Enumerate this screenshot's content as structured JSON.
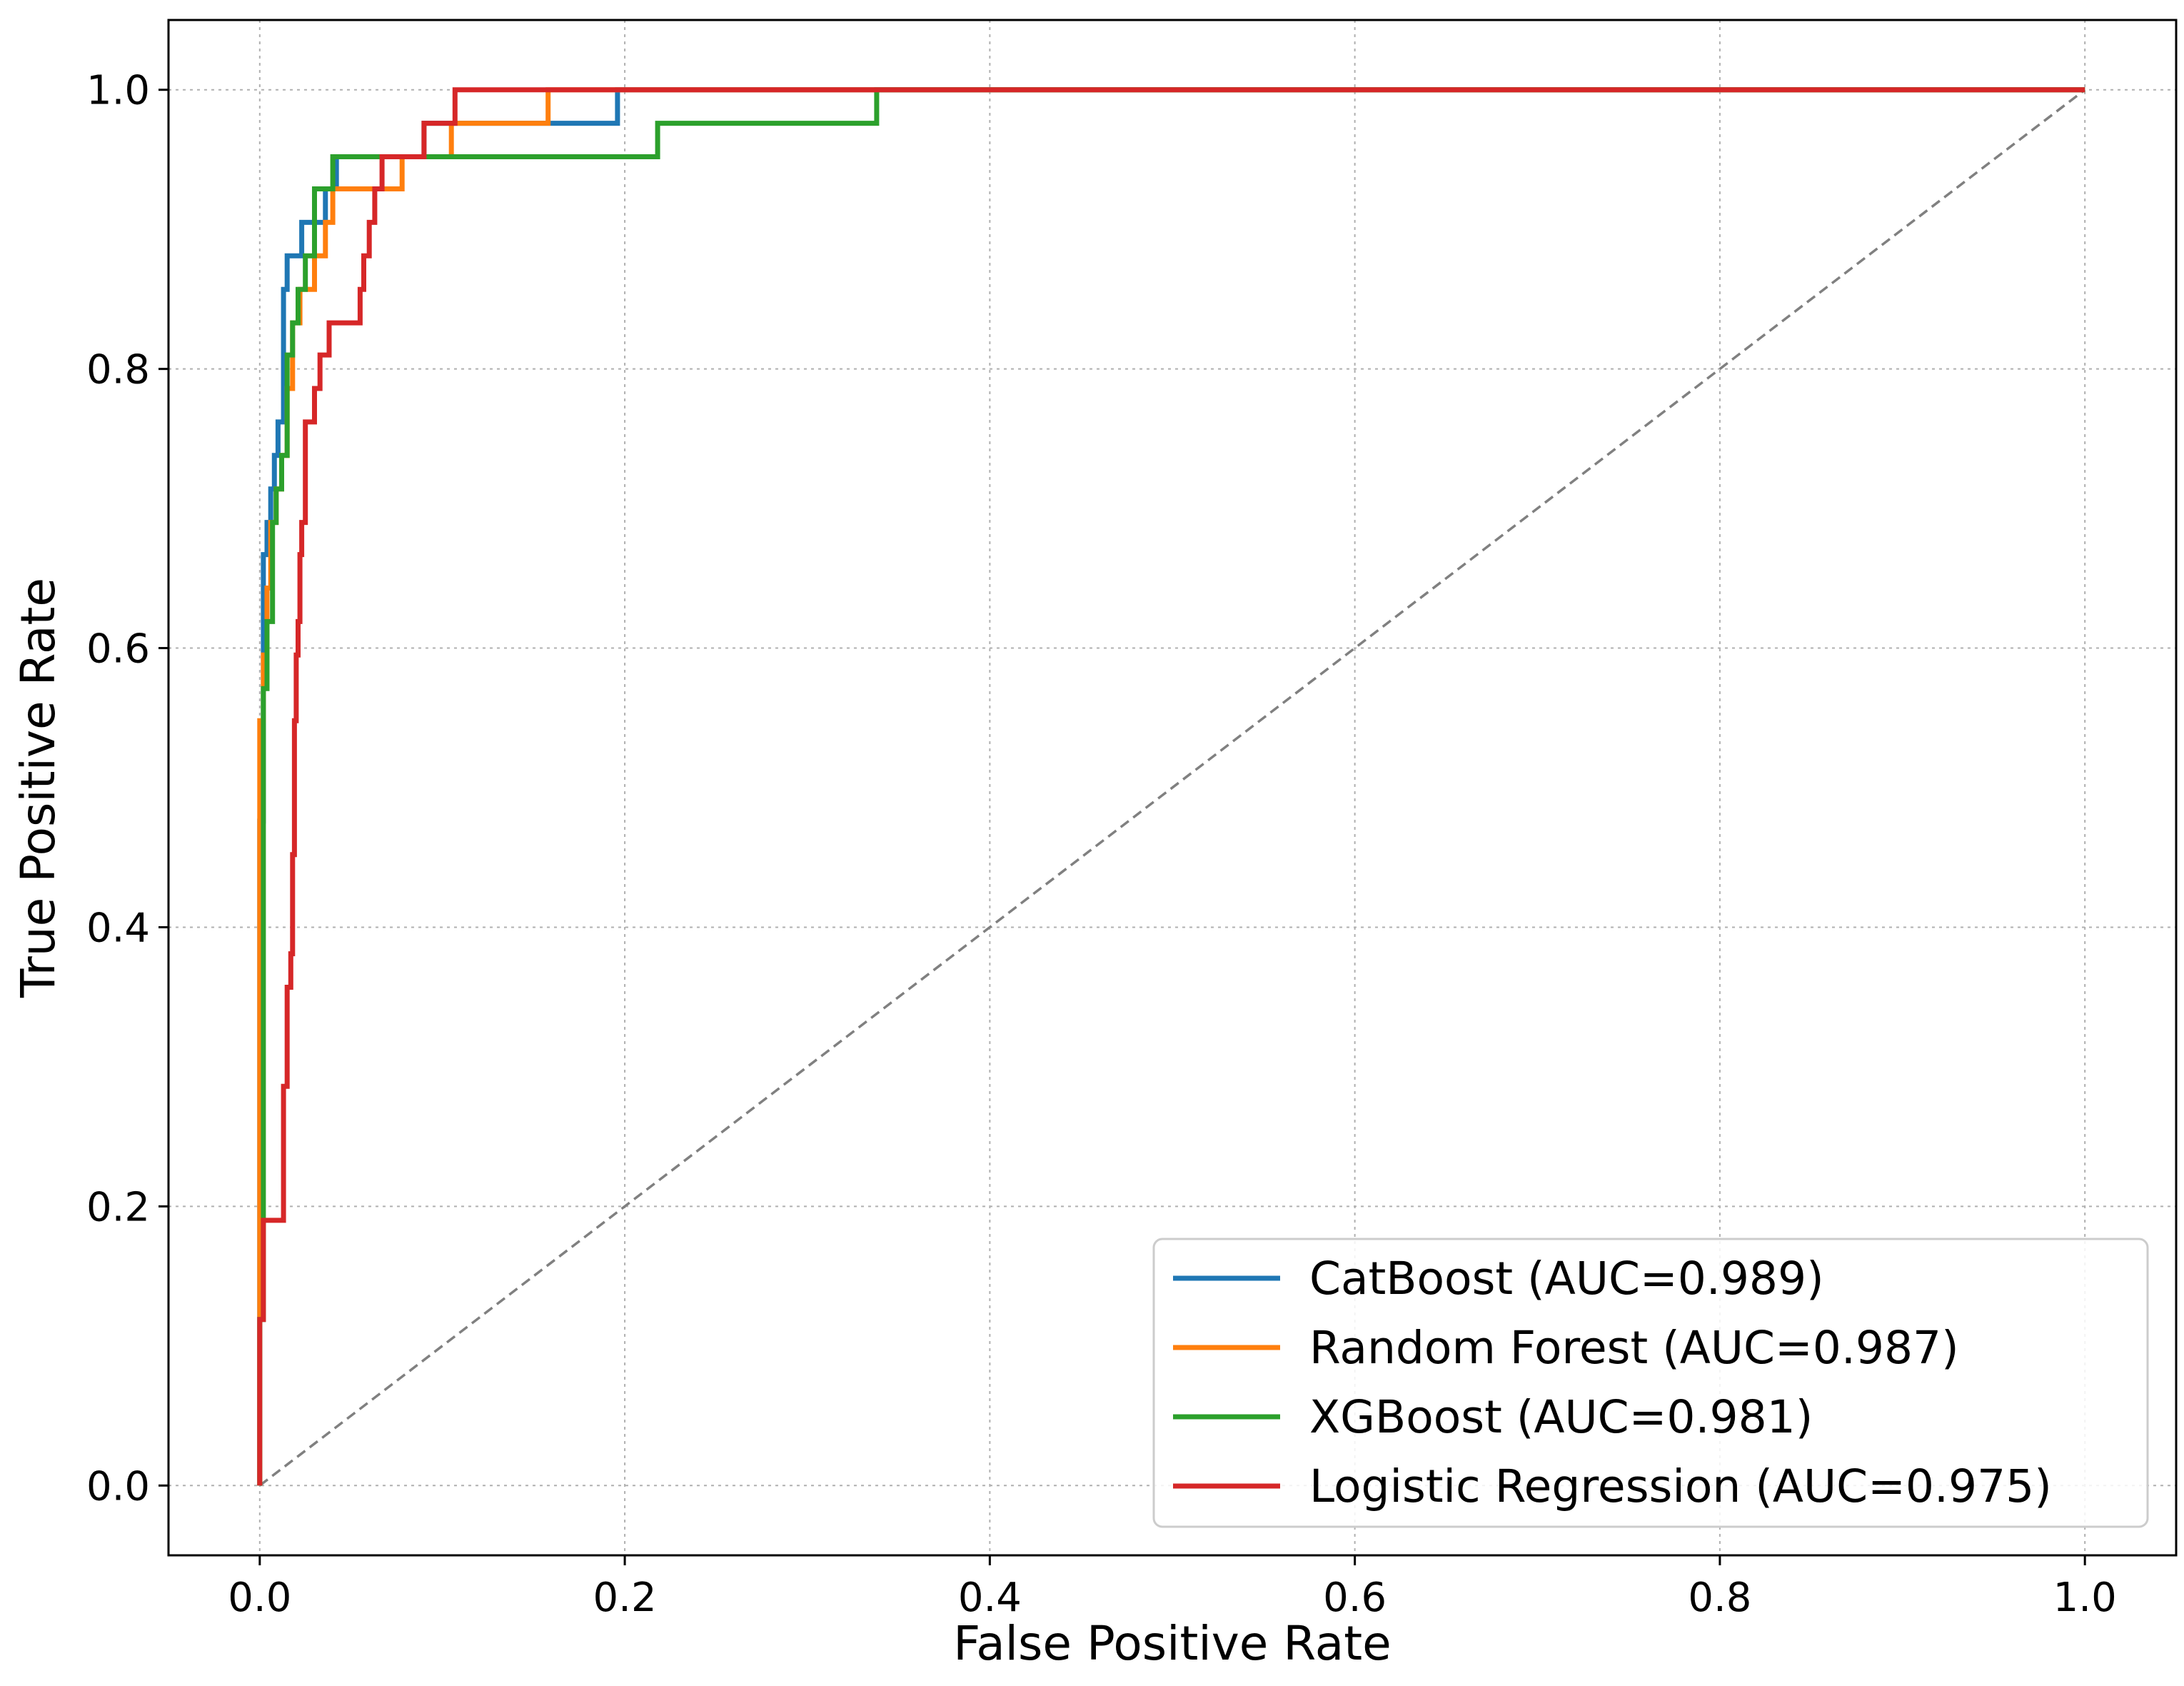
{
  "chart_data": {
    "type": "line",
    "title": "",
    "xlabel": "False Positive Rate",
    "ylabel": "True Positive Rate",
    "xlim": [
      -0.05,
      1.05
    ],
    "ylim": [
      -0.05,
      1.05
    ],
    "grid": true,
    "legend_position": "bottom-right",
    "x_ticks": [
      0.0,
      0.2,
      0.4,
      0.6,
      0.8,
      1.0
    ],
    "x_tick_labels": [
      "0.0",
      "0.2",
      "0.4",
      "0.6",
      "0.8",
      "1.0"
    ],
    "y_ticks": [
      0.0,
      0.2,
      0.4,
      0.6,
      0.8,
      1.0
    ],
    "y_tick_labels": [
      "0.0",
      "0.2",
      "0.4",
      "0.6",
      "0.8",
      "1.0"
    ],
    "reference_line": {
      "name": "Chance",
      "color": "#808080",
      "style": "dashed",
      "x": [
        0,
        1
      ],
      "y": [
        0,
        1
      ]
    },
    "series": [
      {
        "name": "CatBoost",
        "label": "CatBoost (AUC=0.989)",
        "auc": 0.989,
        "color": "#1f77b4",
        "x": [
          0,
          0,
          0.002,
          0.002,
          0.004,
          0.004,
          0.006,
          0.006,
          0.008,
          0.008,
          0.01,
          0.01,
          0.013,
          0.013,
          0.015,
          0.015,
          0.018,
          0.018,
          0.023,
          0.023,
          0.03,
          0.03,
          0.036,
          0.036,
          0.042,
          0.042,
          0.06,
          0.06,
          0.09,
          0.09,
          0.1,
          0.1,
          0.196,
          0.196,
          1.0
        ],
        "y": [
          0,
          0.476,
          0.476,
          0.667,
          0.667,
          0.69,
          0.69,
          0.714,
          0.714,
          0.738,
          0.738,
          0.762,
          0.762,
          0.857,
          0.857,
          0.881,
          0.881,
          0.881,
          0.881,
          0.905,
          0.905,
          0.905,
          0.905,
          0.929,
          0.929,
          0.952,
          0.952,
          0.952,
          0.952,
          0.976,
          0.976,
          0.976,
          0.976,
          1.0,
          1.0
        ]
      },
      {
        "name": "Random Forest",
        "label": "Random Forest (AUC=0.987)",
        "auc": 0.987,
        "color": "#ff7f0e",
        "x": [
          0,
          0,
          0.002,
          0.002,
          0.004,
          0.004,
          0.006,
          0.006,
          0.009,
          0.009,
          0.012,
          0.012,
          0.015,
          0.015,
          0.018,
          0.018,
          0.022,
          0.022,
          0.03,
          0.03,
          0.036,
          0.036,
          0.04,
          0.04,
          0.06,
          0.06,
          0.078,
          0.078,
          0.095,
          0.095,
          0.105,
          0.105,
          0.158,
          0.158,
          1.0
        ],
        "y": [
          0,
          0.548,
          0.548,
          0.595,
          0.595,
          0.643,
          0.643,
          0.69,
          0.69,
          0.714,
          0.714,
          0.738,
          0.738,
          0.786,
          0.786,
          0.833,
          0.833,
          0.857,
          0.857,
          0.881,
          0.881,
          0.905,
          0.905,
          0.929,
          0.929,
          0.929,
          0.929,
          0.952,
          0.952,
          0.952,
          0.952,
          0.976,
          0.976,
          1.0,
          1.0
        ]
      },
      {
        "name": "XGBoost",
        "label": "XGBoost (AUC=0.981)",
        "auc": 0.981,
        "color": "#2ca02c",
        "x": [
          0,
          0,
          0.002,
          0.002,
          0.004,
          0.004,
          0.007,
          0.007,
          0.009,
          0.009,
          0.012,
          0.012,
          0.015,
          0.015,
          0.018,
          0.018,
          0.021,
          0.021,
          0.025,
          0.025,
          0.03,
          0.03,
          0.04,
          0.04,
          0.09,
          0.09,
          0.218,
          0.218,
          0.338,
          0.338,
          1.0
        ],
        "y": [
          0,
          0.119,
          0.119,
          0.571,
          0.571,
          0.619,
          0.619,
          0.69,
          0.69,
          0.714,
          0.714,
          0.738,
          0.738,
          0.81,
          0.81,
          0.833,
          0.833,
          0.857,
          0.857,
          0.881,
          0.881,
          0.929,
          0.929,
          0.952,
          0.952,
          0.952,
          0.952,
          0.976,
          0.976,
          1.0,
          1.0
        ]
      },
      {
        "name": "Logistic Regression",
        "label": "Logistic Regression (AUC=0.975)",
        "auc": 0.975,
        "color": "#d62728",
        "x": [
          0,
          0,
          0.002,
          0.002,
          0.004,
          0.004,
          0.013,
          0.013,
          0.015,
          0.015,
          0.017,
          0.017,
          0.018,
          0.018,
          0.019,
          0.019,
          0.02,
          0.02,
          0.021,
          0.021,
          0.022,
          0.022,
          0.023,
          0.023,
          0.025,
          0.025,
          0.026,
          0.026,
          0.03,
          0.03,
          0.033,
          0.033,
          0.038,
          0.038,
          0.043,
          0.043,
          0.055,
          0.055,
          0.057,
          0.057,
          0.06,
          0.06,
          0.063,
          0.063,
          0.067,
          0.067,
          0.09,
          0.09,
          0.107,
          0.107,
          1.0
        ],
        "y": [
          0,
          0.119,
          0.119,
          0.19,
          0.19,
          0.19,
          0.19,
          0.286,
          0.286,
          0.357,
          0.357,
          0.381,
          0.381,
          0.452,
          0.452,
          0.548,
          0.548,
          0.595,
          0.595,
          0.619,
          0.619,
          0.667,
          0.667,
          0.69,
          0.69,
          0.762,
          0.762,
          0.762,
          0.762,
          0.786,
          0.786,
          0.81,
          0.81,
          0.833,
          0.833,
          0.833,
          0.833,
          0.857,
          0.857,
          0.881,
          0.881,
          0.905,
          0.905,
          0.929,
          0.929,
          0.952,
          0.952,
          0.976,
          0.976,
          1.0,
          1.0
        ]
      }
    ]
  }
}
